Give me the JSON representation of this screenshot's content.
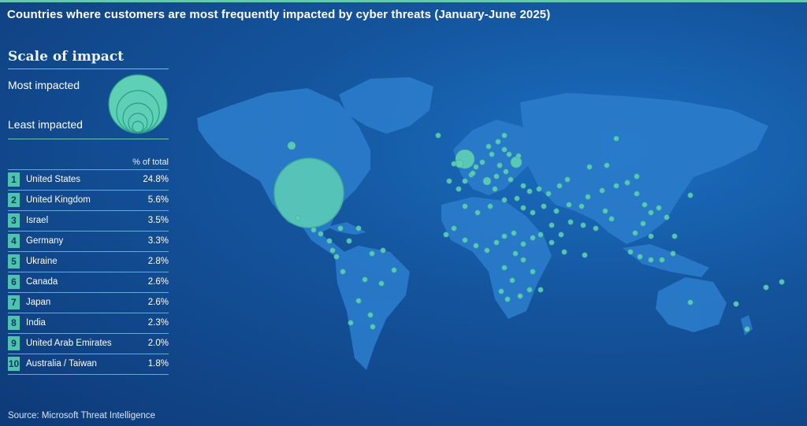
{
  "title": "Countries where customers are most frequently impacted by cyber threats  (January-June 2025)",
  "legend": {
    "scale_title": "Scale of impact",
    "most_label": "Most impacted",
    "least_label": "Least impacted",
    "column_header": "% of total"
  },
  "rankings": [
    {
      "rank": "1",
      "country": "United States",
      "pct": "24.8%"
    },
    {
      "rank": "2",
      "country": "United Kingdom",
      "pct": "5.6%"
    },
    {
      "rank": "3",
      "country": "Israel",
      "pct": "3.5%"
    },
    {
      "rank": "4",
      "country": "Germany",
      "pct": "3.3%"
    },
    {
      "rank": "5",
      "country": "Ukraine",
      "pct": "2.8%"
    },
    {
      "rank": "6",
      "country": "Canada",
      "pct": "2.6%"
    },
    {
      "rank": "7",
      "country": "Japan",
      "pct": "2.6%"
    },
    {
      "rank": "8",
      "country": "India",
      "pct": "2.3%"
    },
    {
      "rank": "9",
      "country": "United Arab Emirates",
      "pct": "2.0%"
    },
    {
      "rank": "10",
      "country": "Australia / Taiwan",
      "pct": "1.8%"
    }
  ],
  "source": "Source: Microsoft Threat Intelligence",
  "colors": {
    "background": "#14549d",
    "land": "#2a7ccb",
    "bubble": "#5fd0b5",
    "accent": "#4ec3ad"
  }
}
